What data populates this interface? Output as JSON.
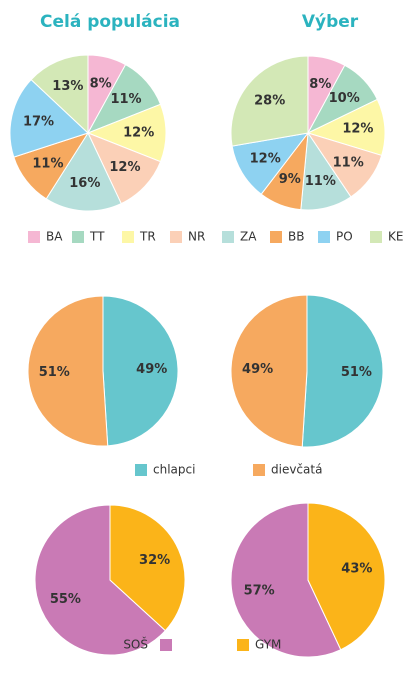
{
  "column_titles": [
    "Celá populácia",
    "Výber"
  ],
  "chart_data": [
    {
      "type": "pie",
      "direction": "clockwise",
      "categories": [
        "BA",
        "TT",
        "TR",
        "NR",
        "ZA",
        "BB",
        "PO",
        "KE"
      ],
      "colors": [
        "#f5b7d3",
        "#a6d9c1",
        "#fdf7a6",
        "#fbd0b7",
        "#b6dfdb",
        "#f6a95f",
        "#8ed2f1",
        "#d3e8b6"
      ],
      "series": [
        {
          "values": [
            8,
            11,
            12,
            12,
            16,
            11,
            17,
            13
          ],
          "value_labels": [
            "8%",
            "11%",
            "12%",
            "12%",
            "16%",
            "11%",
            "17%",
            "13%"
          ]
        },
        {
          "values": [
            8,
            10,
            12,
            11,
            11,
            9,
            12,
            28
          ],
          "value_labels": [
            "8%",
            "10%",
            "12%",
            "11%",
            "11%",
            "9%",
            "12%",
            "28%"
          ]
        }
      ]
    },
    {
      "type": "pie",
      "direction": "clockwise",
      "categories": [
        "chlapci",
        "dievčatá"
      ],
      "colors": [
        "#66c6cd",
        "#f6a95f"
      ],
      "series": [
        {
          "values": [
            49,
            51
          ],
          "value_labels": [
            "49%",
            "51%"
          ]
        },
        {
          "values": [
            51,
            49
          ],
          "value_labels": [
            "51%",
            "49%"
          ]
        }
      ]
    },
    {
      "type": "pie",
      "direction": "counterclockwise",
      "categories": [
        "SOŠ",
        "GYM"
      ],
      "colors": [
        "#c97ab5",
        "#fbb419"
      ],
      "series": [
        {
          "values": [
            55,
            32
          ],
          "value_labels": [
            "55%",
            "32%"
          ]
        },
        {
          "values": [
            57,
            43
          ],
          "value_labels": [
            "57%",
            "43%"
          ]
        }
      ]
    }
  ]
}
